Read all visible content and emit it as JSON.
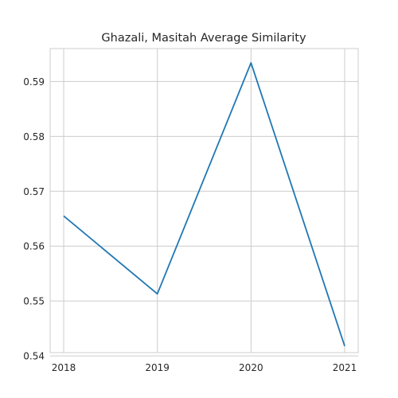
{
  "chart_data": {
    "type": "line",
    "title": "Ghazali, Masitah Average Similarity",
    "xlabel": "",
    "ylabel": "",
    "x": [
      "2018",
      "2019",
      "2020",
      "2021"
    ],
    "series": [
      {
        "values": [
          0.5655,
          0.5513,
          0.5934,
          0.5418
        ],
        "color": "#1f77b4"
      }
    ],
    "yticks": [
      0.54,
      0.55,
      0.56,
      0.57,
      0.58,
      0.59
    ],
    "ytick_labels": [
      "0.54",
      "0.55",
      "0.56",
      "0.57",
      "0.58",
      "0.59"
    ],
    "ylim": [
      0.5406,
      0.596
    ],
    "grid": true,
    "legend": "none"
  }
}
